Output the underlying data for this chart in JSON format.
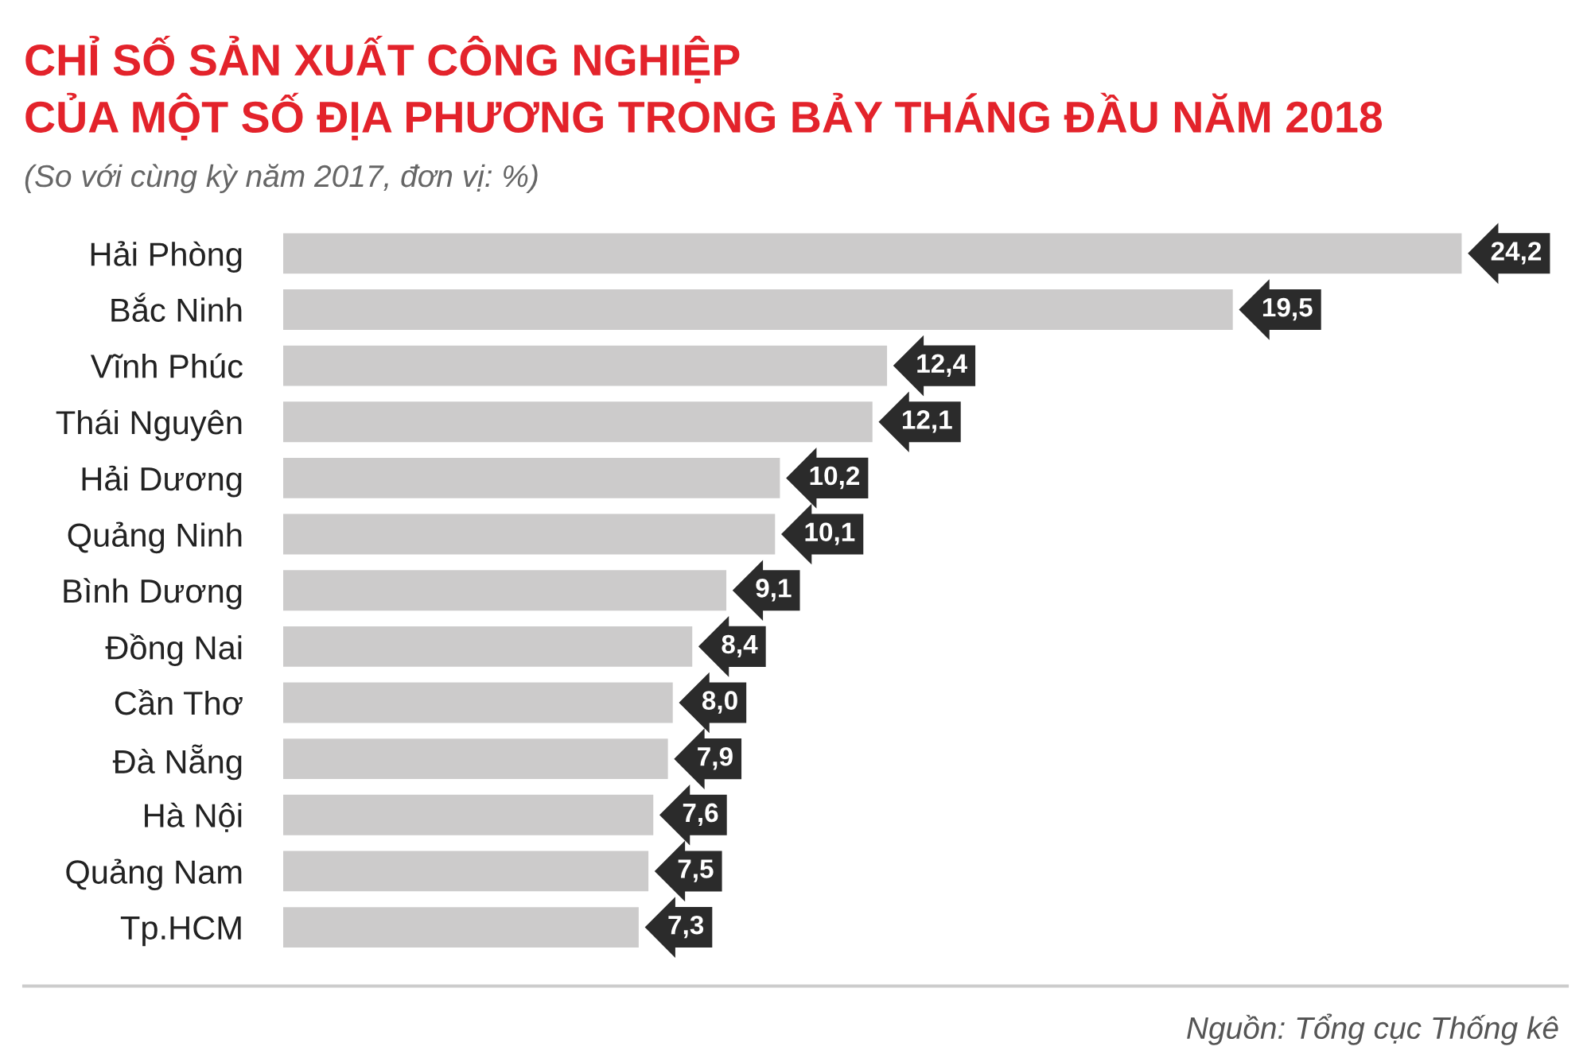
{
  "chart_data": {
    "type": "bar",
    "orientation": "horizontal",
    "title": "CHỈ SỐ SẢN XUẤT CÔNG NGHIỆP\nCỦA MỘT SỐ ĐỊA PHƯƠNG TRONG BẢY THÁNG ĐẦU NĂM 2018",
    "subtitle": "(So với cùng kỳ năm 2017, đơn vị: %)",
    "categories": [
      "Hải Phòng",
      "Bắc Ninh",
      "Vĩnh Phúc",
      "Thái Nguyên",
      "Hải Dương",
      "Quảng Ninh",
      "Bình Dương",
      "Đồng Nai",
      "Cần Thơ",
      "Đà Nẵng",
      "Hà Nội",
      "Quảng Nam",
      "Tp.HCM"
    ],
    "values": [
      24.2,
      19.5,
      12.4,
      12.1,
      10.2,
      10.1,
      9.1,
      8.4,
      8.0,
      7.9,
      7.6,
      7.5,
      7.3
    ],
    "value_labels": [
      "24,2",
      "19,5",
      "12,4",
      "12,1",
      "10,2",
      "10,1",
      "9,1",
      "8,4",
      "8,0",
      "7,9",
      "7,6",
      "7,5",
      "7,3"
    ],
    "color": "#cccbcb",
    "xlim": [
      0,
      26.3
    ],
    "tick_labels": "y",
    "grid": false,
    "legend": false,
    "annotations": [
      "Nguồn: Tổng cục Thống kê"
    ]
  }
}
